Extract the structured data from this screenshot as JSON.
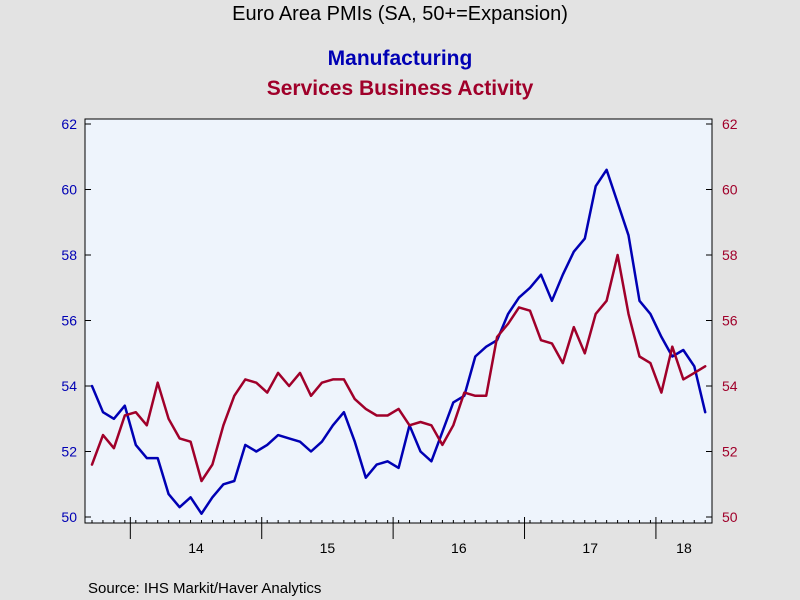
{
  "chart_data": {
    "type": "line",
    "title": "Euro Area PMIs (SA, 50+=Expansion)",
    "source": "Source:  IHS Markit/Haver Analytics",
    "colors": {
      "manufacturing": "#0000b4",
      "services": "#a0002a",
      "plot_bg": "#eef4fc",
      "frame_bg": "#e3e3e3"
    },
    "x_start": "2013-09",
    "x_end": "2018-08",
    "xtick_labels": [
      "14",
      "15",
      "16",
      "17",
      "18"
    ],
    "yaxis_left": {
      "ylim": [
        50,
        62
      ],
      "ticks": [
        "50",
        "52",
        "54",
        "56",
        "58",
        "60",
        "62"
      ]
    },
    "yaxis_right": {
      "ylim": [
        50,
        62
      ],
      "ticks": [
        "50",
        "52",
        "54",
        "56",
        "58",
        "60",
        "62"
      ]
    },
    "grid": false,
    "legend": "top-center (colored series names under title)",
    "series": [
      {
        "name": "Manufacturing",
        "axis": "left",
        "values": [
          54.0,
          53.2,
          53.0,
          53.4,
          52.2,
          51.8,
          51.8,
          50.7,
          50.3,
          50.6,
          50.1,
          50.6,
          51.0,
          51.1,
          52.2,
          52.0,
          52.2,
          52.5,
          52.4,
          52.3,
          52.0,
          52.3,
          52.8,
          53.2,
          52.3,
          51.2,
          51.6,
          51.7,
          51.5,
          52.8,
          52.0,
          51.7,
          52.6,
          53.5,
          53.7,
          54.9,
          55.2,
          55.4,
          56.2,
          56.7,
          57.0,
          57.4,
          56.6,
          57.4,
          58.1,
          58.5,
          60.1,
          60.6,
          59.6,
          58.6,
          56.6,
          56.2,
          55.5,
          54.9,
          55.1,
          54.6,
          53.2
        ]
      },
      {
        "name": "Services Business Activity",
        "axis": "right",
        "values": [
          51.6,
          52.5,
          52.1,
          53.1,
          53.2,
          52.8,
          54.1,
          53.0,
          52.4,
          52.3,
          51.1,
          51.6,
          52.8,
          53.7,
          54.2,
          54.1,
          53.8,
          54.4,
          54.0,
          54.4,
          53.7,
          54.1,
          54.2,
          54.2,
          53.6,
          53.3,
          53.1,
          53.1,
          53.3,
          52.8,
          52.9,
          52.8,
          52.2,
          52.8,
          53.8,
          53.7,
          53.7,
          55.5,
          55.9,
          56.4,
          56.3,
          55.4,
          55.3,
          54.7,
          55.8,
          55.0,
          56.2,
          56.6,
          58.0,
          56.2,
          54.9,
          54.7,
          53.8,
          55.2,
          54.2,
          54.4,
          54.6
        ]
      }
    ]
  }
}
